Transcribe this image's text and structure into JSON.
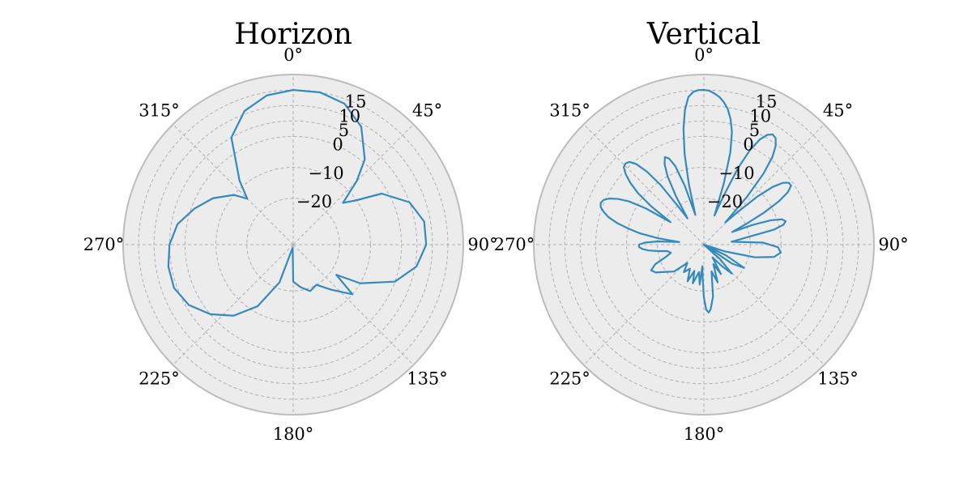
{
  "chart_data": [
    {
      "type": "polar",
      "title": "Horizon",
      "theta_ticks": [
        "0°",
        "45°",
        "90°",
        "135°",
        "180°",
        "225°",
        "270°",
        "315°"
      ],
      "r_ticks": [
        "−20",
        "−10",
        "0",
        "5",
        "10",
        "15"
      ],
      "r_tick_values": [
        -20,
        -10,
        0,
        5,
        10,
        15
      ],
      "r_range": [
        -35,
        20
      ],
      "theta_zero": "N",
      "theta_direction": "clockwise",
      "grid": true,
      "color": "#348abd",
      "series": [
        {
          "theta_deg": [
            0,
            10,
            20,
            30,
            40,
            45,
            50,
            55,
            60,
            70,
            80,
            90,
            100,
            110,
            120,
            125,
            130,
            140,
            150,
            160,
            170,
            180,
            190,
            200,
            210,
            220,
            230,
            240,
            250,
            260,
            270,
            280,
            290,
            300,
            310,
            315,
            320,
            330,
            340,
            350,
            360
          ],
          "r": [
            15,
            15,
            13.5,
            9,
            1,
            -6,
            -14,
            -10,
            -2,
            5,
            8,
            8,
            5.5,
            0,
            -10,
            -18,
            -10,
            -16,
            -20,
            -19,
            -21,
            -23,
            -34,
            -22,
            -12,
            -5,
            0,
            4,
            6,
            6,
            5,
            3,
            -1,
            -5,
            -10,
            -14,
            -8,
            5,
            11,
            14,
            15
          ]
        }
      ]
    },
    {
      "type": "polar",
      "title": "Vertical",
      "theta_ticks": [
        "0°",
        "45°",
        "90°",
        "135°",
        "180°",
        "225°",
        "270°",
        "315°"
      ],
      "r_ticks": [
        "−20",
        "−10",
        "0",
        "5",
        "10",
        "15"
      ],
      "r_tick_values": [
        -20,
        -10,
        0,
        5,
        10,
        15
      ],
      "r_range": [
        -35,
        20
      ],
      "theta_zero": "N",
      "theta_direction": "clockwise",
      "grid": true,
      "color": "#348abd",
      "series": [
        {
          "theta_deg": [
            0,
            2,
            4,
            6,
            8,
            10,
            12,
            14,
            16,
            18,
            20,
            22,
            24,
            26,
            28,
            30,
            32,
            34,
            36,
            38,
            40,
            42,
            44,
            46,
            48,
            50,
            52,
            54,
            56,
            58,
            60,
            62,
            64,
            66,
            68,
            70,
            72,
            74,
            76,
            78,
            80,
            84,
            88,
            92,
            96,
            100,
            104,
            108,
            112,
            116,
            120,
            124,
            128,
            132,
            136,
            140,
            146,
            150,
            154,
            160,
            164,
            170,
            174,
            176,
            178,
            180,
            182,
            184,
            186,
            190,
            196,
            200,
            204,
            210,
            216,
            222,
            228,
            234,
            240,
            244,
            248,
            252,
            256,
            260,
            262,
            264,
            266,
            268,
            270,
            272,
            274,
            276,
            278,
            280,
            282,
            284,
            286,
            288,
            290,
            292,
            294,
            296,
            298,
            300,
            302,
            304,
            306,
            308,
            310,
            312,
            314,
            316,
            318,
            320,
            322,
            324,
            326,
            328,
            330,
            332,
            334,
            336,
            338,
            340,
            342,
            344,
            346,
            348,
            350,
            352,
            354,
            356,
            358,
            360
          ],
          "r": [
            15,
            14.8,
            14,
            13,
            11.5,
            9.5,
            6.5,
            2.5,
            -4,
            -14,
            -25,
            -18,
            -8,
            -1,
            3.5,
            6,
            7,
            6.5,
            4.5,
            1,
            -5,
            -14,
            -25,
            -20,
            -12,
            -6,
            -2.5,
            -1,
            -1,
            -3,
            -7,
            -13,
            -20,
            -25,
            -18,
            -12,
            -8.5,
            -7.5,
            -8.5,
            -12,
            -20,
            -26,
            -16,
            -11,
            -10,
            -12,
            -18,
            -28,
            -35,
            -27,
            -20,
            -24,
            -35,
            -28,
            -22,
            -26,
            -30,
            -24,
            -28,
            -22,
            -26,
            -18,
            -14,
            -13,
            -14,
            -18,
            -24,
            -28,
            -22,
            -26,
            -22,
            -26,
            -22,
            -26,
            -24,
            -27,
            -22,
            -20,
            -17,
            -16,
            -18,
            -22,
            -24,
            -23,
            -20,
            -17,
            -15,
            -14,
            -14,
            -16,
            -20,
            -27,
            -20,
            -14,
            -10,
            -6,
            -3,
            -1,
            0.5,
            1,
            0.5,
            -1,
            -3.5,
            -7,
            -13,
            -22,
            -14,
            -8,
            -4,
            -1,
            1,
            1.5,
            1,
            -1,
            -5,
            -11,
            -20,
            -25,
            -17,
            -10,
            -6,
            -4,
            -5,
            -8,
            -15,
            -25,
            -15,
            -5,
            3,
            9,
            13,
            14.5,
            15,
            15
          ]
        }
      ]
    }
  ]
}
